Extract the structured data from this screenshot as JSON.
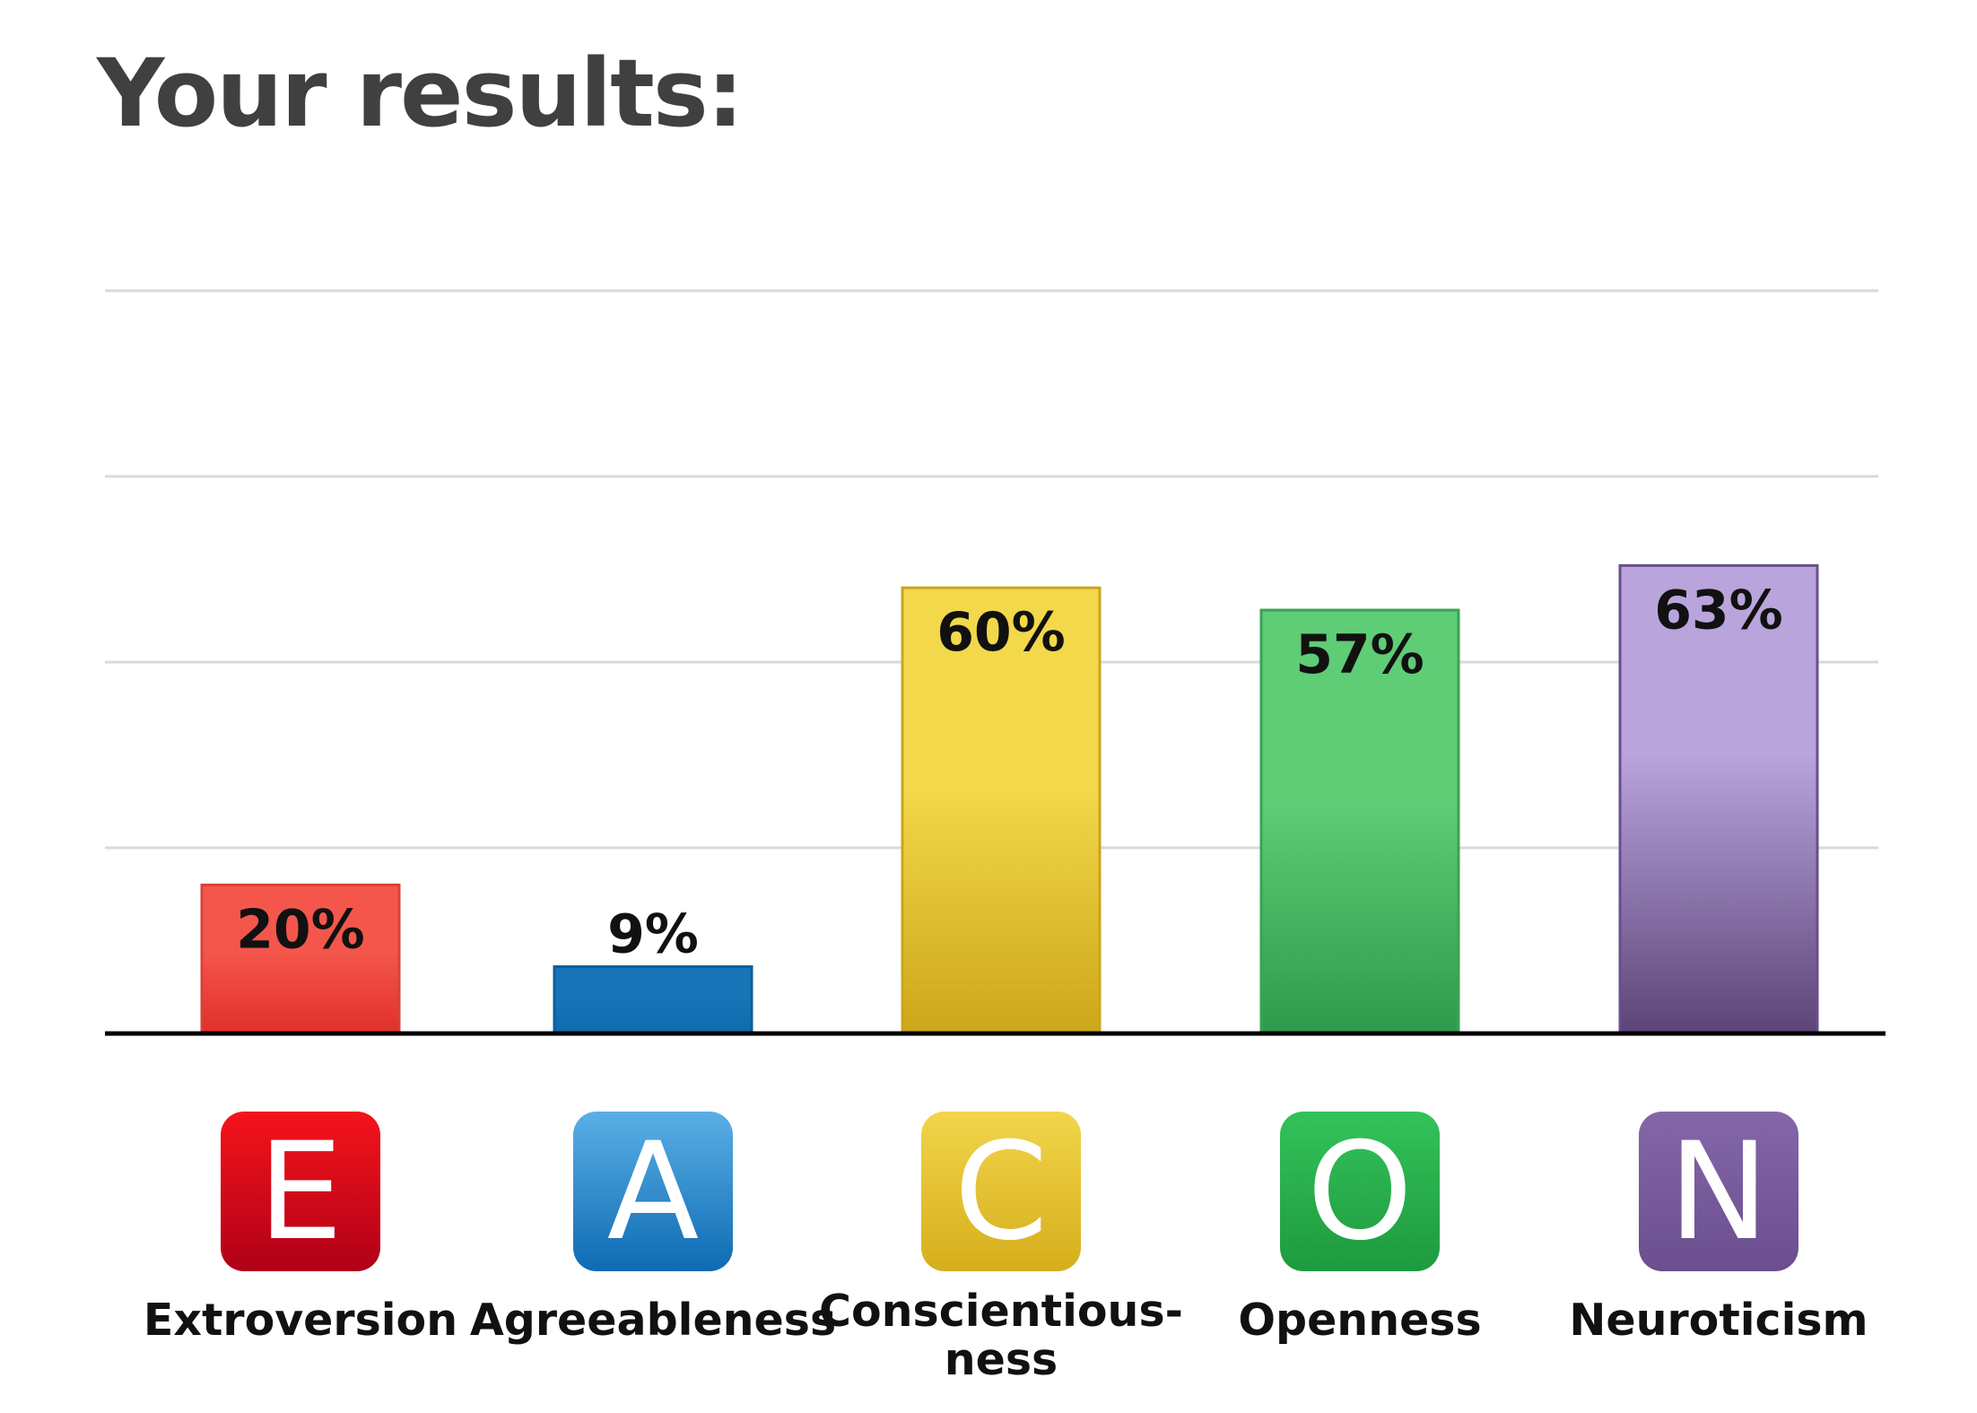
{
  "header": {
    "title": "Your results:"
  },
  "chart_data": {
    "type": "bar",
    "title": "",
    "xlabel": "",
    "ylabel": "",
    "ylim": [
      0,
      100
    ],
    "grid": true,
    "categories": [
      "Extroversion",
      "Agreeableness",
      "Conscientiousness",
      "Openness",
      "Neuroticism"
    ],
    "category_lines": [
      [
        "Extroversion"
      ],
      [
        "Agreeableness"
      ],
      [
        "Conscientious-",
        "ness"
      ],
      [
        "Openness"
      ],
      [
        "Neuroticism"
      ]
    ],
    "values": [
      20,
      9,
      60,
      57,
      63
    ],
    "value_labels": [
      "20%",
      "9%",
      "60%",
      "57%",
      "63%"
    ],
    "badges": [
      "E",
      "A",
      "C",
      "O",
      "N"
    ],
    "colors": [
      {
        "top": "#F4564C",
        "bottom": "#E0302A",
        "border": "#D9413A",
        "badge_top": "#F5141A",
        "badge_bottom": "#B00018"
      },
      {
        "top": "#1876B8",
        "bottom": "#0E6AAE",
        "border": "#0E5E9A",
        "badge_top": "#5AAFE6",
        "badge_bottom": "#0E6BB3"
      },
      {
        "top": "#F2D84A",
        "bottom": "#CDA619",
        "border": "#C9A61C",
        "badge_top": "#F2D54A",
        "badge_bottom": "#D6AE1C"
      },
      {
        "top": "#5FCC76",
        "bottom": "#2E9A4C",
        "border": "#3AA352",
        "badge_top": "#33C25A",
        "badge_bottom": "#1E9A3E"
      },
      {
        "top": "#B9A5DC",
        "bottom": "#5C4478",
        "border": "#6A4E8E",
        "badge_top": "#8467A8",
        "badge_bottom": "#6A4E8E"
      }
    ]
  }
}
